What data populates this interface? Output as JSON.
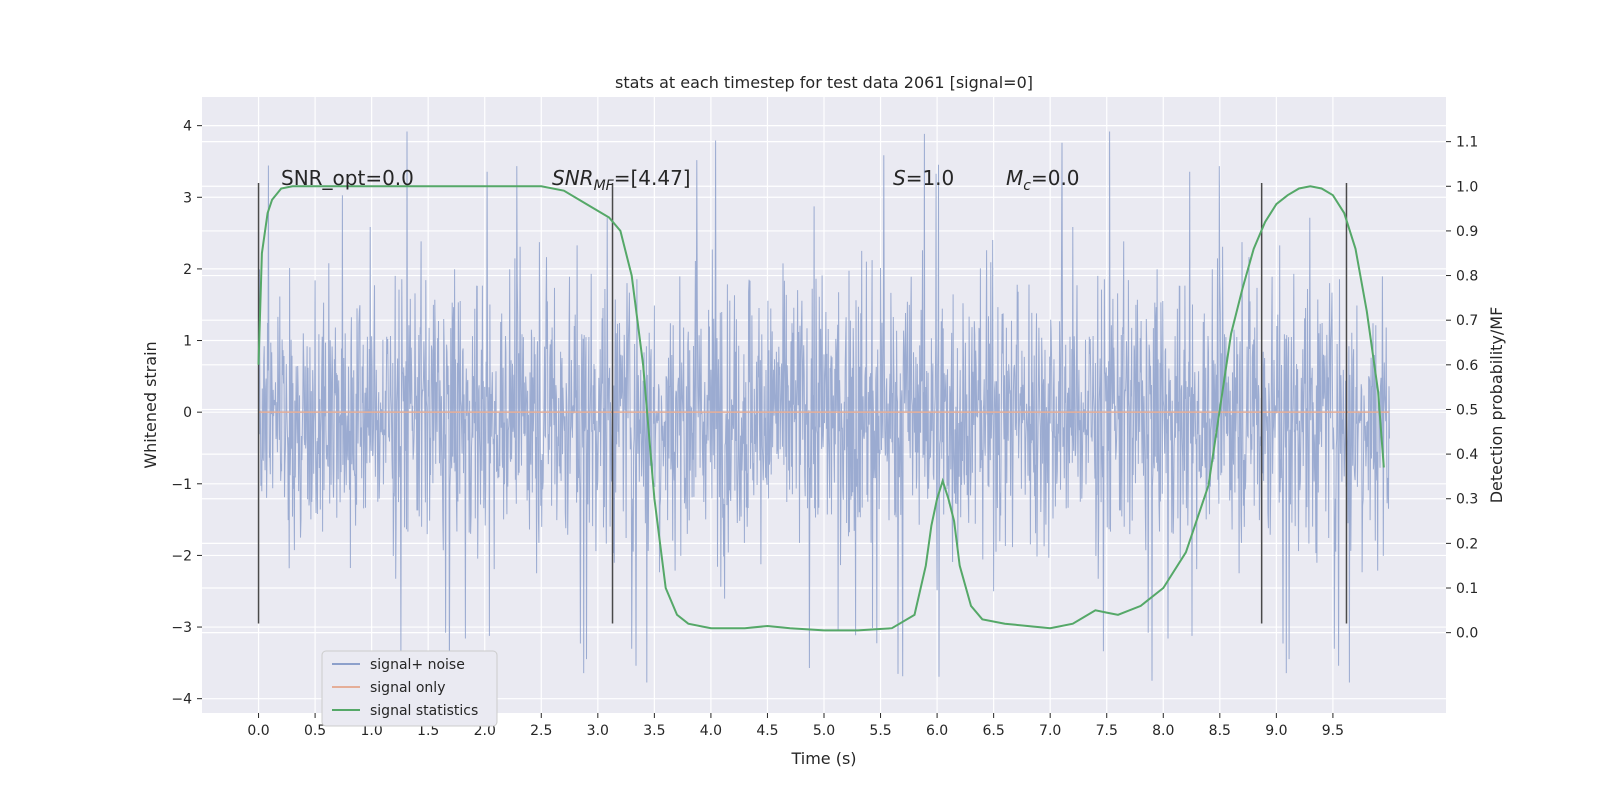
{
  "chart_data": {
    "type": "line",
    "title": "stats at each timestep for test data 2061 [signal=0]",
    "xlabel": "Time (s)",
    "ylabel": "Whitened strain",
    "y2label": "Detection probability/MF",
    "xlim": [
      -0.5,
      10.5
    ],
    "ylim": [
      -4.2,
      4.4
    ],
    "y2lim": [
      -0.18,
      1.2
    ],
    "x_ticks": [
      "0.0",
      "0.5",
      "1.0",
      "1.5",
      "2.0",
      "2.5",
      "3.0",
      "3.5",
      "4.0",
      "4.5",
      "5.0",
      "5.5",
      "6.0",
      "6.5",
      "7.0",
      "7.5",
      "8.0",
      "8.5",
      "9.0",
      "9.5"
    ],
    "y_ticks": [
      "4",
      "3",
      "2",
      "1",
      "0",
      "−1",
      "−2",
      "−3",
      "−4"
    ],
    "y2_ticks": [
      "1.1",
      "1.0",
      "0.9",
      "0.8",
      "0.7",
      "0.6",
      "0.5",
      "0.4",
      "0.3",
      "0.2",
      "0.1",
      "0.0"
    ],
    "grid": true,
    "legend_position": "lower-left",
    "annotations": {
      "snr_opt": "SNR_opt=0.0",
      "snr_mf_main": "SNR",
      "snr_mf_sub": "MF",
      "snr_mf_val": "=[4.47]",
      "s_main": "S",
      "s_val": "=1.0",
      "mc_main": "M",
      "mc_sub": "c",
      "mc_val": "=0.0"
    },
    "markers_x": [
      0.0,
      3.13,
      8.87,
      9.62
    ],
    "series": [
      {
        "name": "signal+ noise",
        "color": "#8da0cb",
        "x_range": [
          0.0,
          10.0
        ],
        "envelope": "noise between approx -3 and +3, peaks to ±4"
      },
      {
        "name": "signal only",
        "color": "#e5ae98",
        "x": [
          0.0,
          10.0
        ],
        "values": [
          0.0,
          0.0
        ]
      },
      {
        "name": "signal statistics",
        "color": "#55a868",
        "axis": "right",
        "x": [
          0.0,
          0.03,
          0.08,
          0.12,
          0.2,
          0.3,
          0.5,
          1.0,
          1.5,
          2.0,
          2.5,
          2.7,
          2.9,
          3.1,
          3.2,
          3.3,
          3.4,
          3.5,
          3.6,
          3.7,
          3.8,
          4.0,
          4.3,
          4.5,
          4.7,
          5.0,
          5.3,
          5.6,
          5.8,
          5.9,
          5.95,
          6.0,
          6.05,
          6.1,
          6.15,
          6.2,
          6.3,
          6.4,
          6.6,
          6.8,
          7.0,
          7.2,
          7.3,
          7.4,
          7.5,
          7.6,
          7.8,
          8.0,
          8.2,
          8.4,
          8.5,
          8.6,
          8.7,
          8.8,
          8.9,
          9.0,
          9.1,
          9.2,
          9.3,
          9.4,
          9.5,
          9.6,
          9.7,
          9.8,
          9.9,
          9.95
        ],
        "values": [
          0.6,
          0.85,
          0.94,
          0.97,
          0.995,
          1.0,
          1.0,
          1.0,
          1.0,
          1.0,
          1.0,
          0.99,
          0.96,
          0.93,
          0.9,
          0.8,
          0.6,
          0.3,
          0.1,
          0.04,
          0.02,
          0.01,
          0.01,
          0.015,
          0.01,
          0.005,
          0.005,
          0.01,
          0.04,
          0.15,
          0.24,
          0.3,
          0.34,
          0.3,
          0.25,
          0.15,
          0.06,
          0.03,
          0.02,
          0.015,
          0.01,
          0.02,
          0.035,
          0.05,
          0.045,
          0.04,
          0.06,
          0.1,
          0.18,
          0.33,
          0.5,
          0.67,
          0.77,
          0.86,
          0.92,
          0.96,
          0.98,
          0.995,
          1.0,
          0.995,
          0.98,
          0.94,
          0.86,
          0.72,
          0.54,
          0.37
        ]
      }
    ]
  }
}
